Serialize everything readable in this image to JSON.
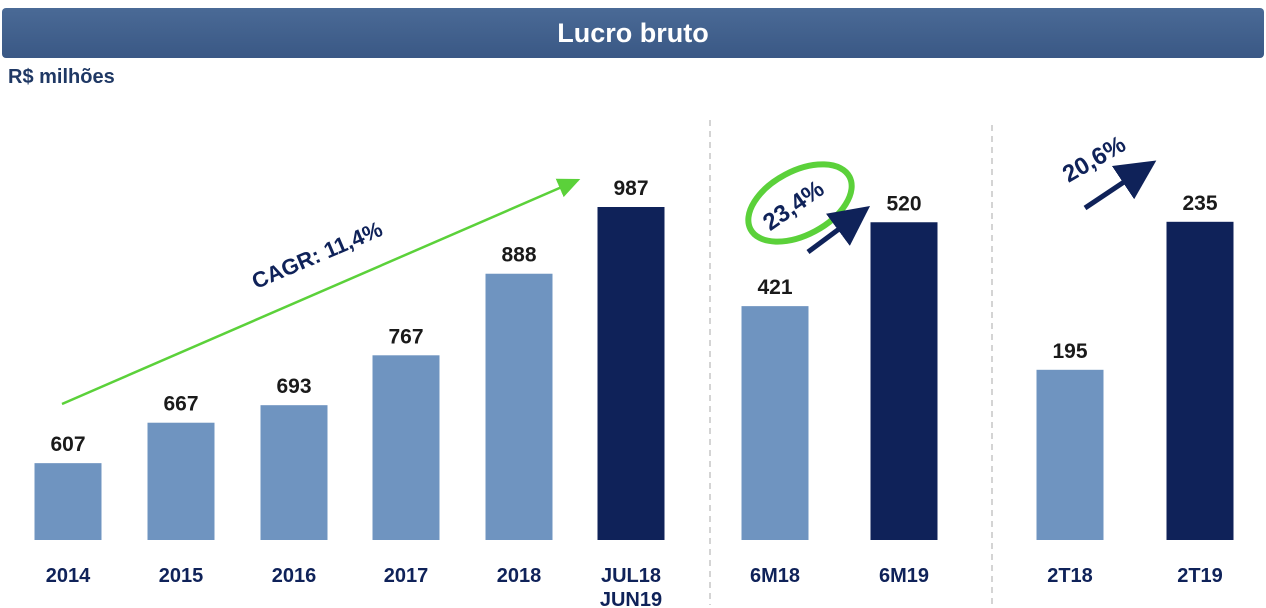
{
  "header": {
    "title": "Lucro bruto",
    "subtitle": "R$ milhões"
  },
  "chart_data": [
    {
      "type": "bar",
      "categories": [
        "2014",
        "2015",
        "2016",
        "2017",
        "2018",
        "JUL18 JUN19"
      ],
      "values": [
        607,
        667,
        693,
        767,
        888,
        987
      ],
      "colors": [
        "#6f94c0",
        "#6f94c0",
        "#6f94c0",
        "#6f94c0",
        "#6f94c0",
        "#0f2259"
      ],
      "ylim": [
        493,
        987
      ],
      "annotation": "CAGR: 11,4%"
    },
    {
      "type": "bar",
      "categories": [
        "6M18",
        "6M19"
      ],
      "values": [
        421,
        520
      ],
      "colors": [
        "#6f94c0",
        "#0f2259"
      ],
      "ylim": [
        145,
        538
      ],
      "annotation": "23,4%"
    },
    {
      "type": "bar",
      "categories": [
        "2T18",
        "2T19"
      ],
      "values": [
        195,
        235
      ],
      "colors": [
        "#6f94c0",
        "#0f2259"
      ],
      "ylim": [
        149,
        239
      ],
      "annotation": "20,6%"
    }
  ]
}
